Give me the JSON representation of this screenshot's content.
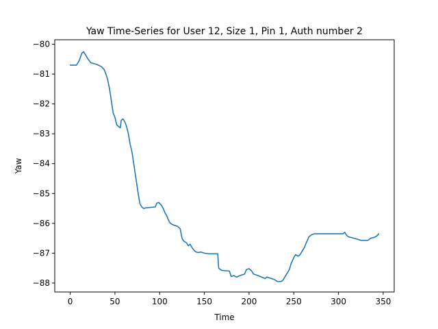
{
  "chart_data": {
    "type": "line",
    "title": "Yaw Time-Series for User 12, Size 1, Pin 1, Auth number 2",
    "xlabel": "Time",
    "ylabel": "Yaw",
    "xlim": [
      -17.3,
      362.3
    ],
    "ylim": [
      -88.3,
      -79.85
    ],
    "xticks": [
      0,
      50,
      100,
      150,
      200,
      250,
      300,
      350
    ],
    "yticks": [
      -88,
      -87,
      -86,
      -85,
      -84,
      -83,
      -82,
      -81,
      -80
    ],
    "grid": false,
    "series": [
      {
        "color": "#1f77b4",
        "points": [
          [
            0,
            -80.7
          ],
          [
            7,
            -80.7
          ],
          [
            10,
            -80.55
          ],
          [
            13,
            -80.3
          ],
          [
            15,
            -80.25
          ],
          [
            17,
            -80.35
          ],
          [
            20,
            -80.5
          ],
          [
            23,
            -80.62
          ],
          [
            30,
            -80.68
          ],
          [
            35,
            -80.75
          ],
          [
            38,
            -80.85
          ],
          [
            40,
            -81.0
          ],
          [
            42,
            -81.2
          ],
          [
            44,
            -81.5
          ],
          [
            46,
            -81.9
          ],
          [
            48,
            -82.3
          ],
          [
            50,
            -82.45
          ],
          [
            52,
            -82.7
          ],
          [
            55,
            -82.78
          ],
          [
            56,
            -82.8
          ],
          [
            57,
            -82.55
          ],
          [
            59,
            -82.5
          ],
          [
            61,
            -82.6
          ],
          [
            63,
            -82.75
          ],
          [
            65,
            -83.0
          ],
          [
            67,
            -83.35
          ],
          [
            69,
            -83.6
          ],
          [
            70,
            -83.8
          ],
          [
            72,
            -84.2
          ],
          [
            74,
            -84.6
          ],
          [
            76,
            -85.0
          ],
          [
            78,
            -85.35
          ],
          [
            80,
            -85.45
          ],
          [
            82,
            -85.5
          ],
          [
            85,
            -85.48
          ],
          [
            95,
            -85.45
          ],
          [
            97,
            -85.32
          ],
          [
            99,
            -85.3
          ],
          [
            102,
            -85.4
          ],
          [
            104,
            -85.5
          ],
          [
            106,
            -85.65
          ],
          [
            108,
            -85.75
          ],
          [
            110,
            -85.9
          ],
          [
            112,
            -86.0
          ],
          [
            115,
            -86.05
          ],
          [
            120,
            -86.1
          ],
          [
            123,
            -86.18
          ],
          [
            125,
            -86.5
          ],
          [
            127,
            -86.6
          ],
          [
            130,
            -86.65
          ],
          [
            132,
            -86.75
          ],
          [
            134,
            -86.7
          ],
          [
            137,
            -86.85
          ],
          [
            140,
            -86.95
          ],
          [
            143,
            -86.98
          ],
          [
            146,
            -86.96
          ],
          [
            150,
            -87.0
          ],
          [
            155,
            -87.02
          ],
          [
            165,
            -87.02
          ],
          [
            166,
            -87.5
          ],
          [
            168,
            -87.55
          ],
          [
            170,
            -87.58
          ],
          [
            178,
            -87.6
          ],
          [
            180,
            -87.78
          ],
          [
            183,
            -87.75
          ],
          [
            186,
            -87.8
          ],
          [
            190,
            -87.75
          ],
          [
            195,
            -87.7
          ],
          [
            197,
            -87.55
          ],
          [
            200,
            -87.52
          ],
          [
            203,
            -87.6
          ],
          [
            205,
            -87.7
          ],
          [
            210,
            -87.75
          ],
          [
            214,
            -87.8
          ],
          [
            218,
            -87.85
          ],
          [
            220,
            -87.8
          ],
          [
            222,
            -87.82
          ],
          [
            228,
            -87.88
          ],
          [
            232,
            -87.95
          ],
          [
            236,
            -87.95
          ],
          [
            238,
            -87.9
          ],
          [
            240,
            -87.8
          ],
          [
            243,
            -87.65
          ],
          [
            245,
            -87.55
          ],
          [
            247,
            -87.35
          ],
          [
            250,
            -87.15
          ],
          [
            252,
            -87.05
          ],
          [
            255,
            -87.1
          ],
          [
            257,
            -87.05
          ],
          [
            260,
            -86.9
          ],
          [
            262,
            -86.8
          ],
          [
            264,
            -86.65
          ],
          [
            267,
            -86.45
          ],
          [
            270,
            -86.38
          ],
          [
            273,
            -86.35
          ],
          [
            276,
            -86.35
          ],
          [
            305,
            -86.35
          ],
          [
            307,
            -86.3
          ],
          [
            309,
            -86.4
          ],
          [
            311,
            -86.45
          ],
          [
            315,
            -86.48
          ],
          [
            320,
            -86.52
          ],
          [
            325,
            -86.57
          ],
          [
            333,
            -86.57
          ],
          [
            336,
            -86.5
          ],
          [
            340,
            -86.47
          ],
          [
            343,
            -86.42
          ],
          [
            345,
            -86.35
          ]
        ]
      }
    ]
  }
}
